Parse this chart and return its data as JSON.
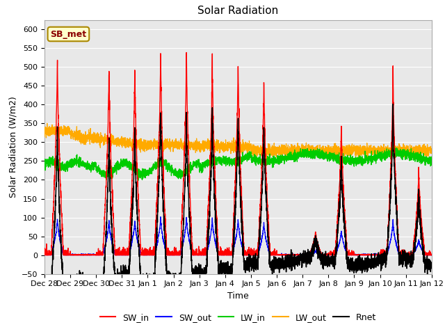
{
  "title": "Solar Radiation",
  "xlabel": "Time",
  "ylabel": "Solar Radiation (W/m2)",
  "ylim": [
    -50,
    625
  ],
  "xlim": [
    0,
    15.0
  ],
  "annotation": "SB_met",
  "tick_labels": [
    "Dec 28",
    "Dec 29",
    "Dec 30",
    "Dec 31",
    "Jan 1",
    "Jan 2",
    "Jan 3",
    "Jan 4",
    "Jan 5",
    "Jan 6",
    "Jan 7",
    "Jan 8",
    "Jan 9",
    "Jan 10",
    "Jan 11",
    "Jan 12"
  ],
  "tick_positions": [
    0,
    1,
    2,
    3,
    4,
    5,
    6,
    7,
    8,
    9,
    10,
    11,
    12,
    13,
    14,
    15
  ],
  "colors": {
    "SW_in": "#ff0000",
    "SW_out": "#0000ff",
    "LW_in": "#00cc00",
    "LW_out": "#ffaa00",
    "Rnet": "#000000"
  },
  "background_color": "#e8e8e8",
  "figsize": [
    6.4,
    4.8
  ],
  "dpi": 100
}
